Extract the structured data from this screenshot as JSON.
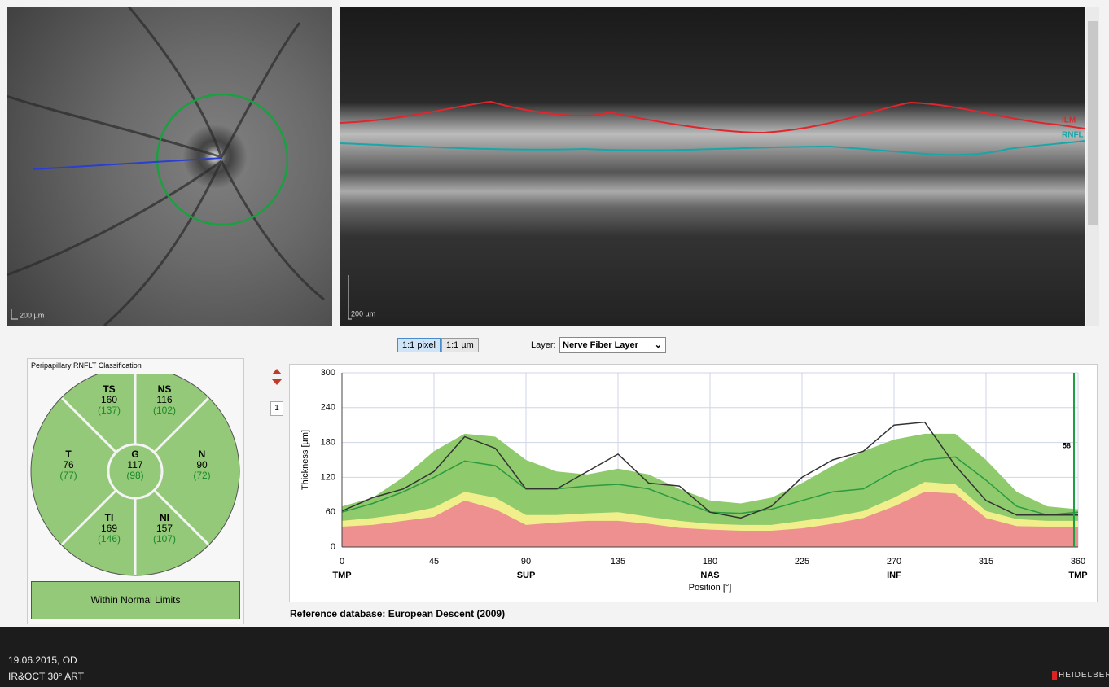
{
  "fundus": {
    "scale_label": "200 µm"
  },
  "oct": {
    "scale_label": "200 µm",
    "layer_top": "ILM",
    "layer_bottom": "RNFL"
  },
  "toolbar": {
    "pixel_button": "1:1 pixel",
    "micron_button": "1:1 µm",
    "layer_label": "Layer:",
    "layer_value": "Nerve Fiber Layer",
    "page_number": "1"
  },
  "classification": {
    "title": "Peripapillary RNFLT Classification",
    "sectors": [
      {
        "name": "TS",
        "value": "160",
        "reference": "(137)"
      },
      {
        "name": "NS",
        "value": "116",
        "reference": "(102)"
      },
      {
        "name": "T",
        "value": "76",
        "reference": "(77)"
      },
      {
        "name": "G",
        "value": "117",
        "reference": "(98)"
      },
      {
        "name": "N",
        "value": "90",
        "reference": "(72)"
      },
      {
        "name": "TI",
        "value": "169",
        "reference": "(146)"
      },
      {
        "name": "NI",
        "value": "157",
        "reference": "(107)"
      }
    ],
    "status": "Within Normal Limits"
  },
  "chart_data": {
    "type": "line",
    "y_label": "Thickness [µm]",
    "x_label": "Position [°]",
    "note": "Reference database: European Descent (2009)",
    "xlim": [
      0,
      360
    ],
    "ylim": [
      0,
      300
    ],
    "xticks": [
      0,
      45,
      90,
      135,
      180,
      225,
      270,
      315,
      360
    ],
    "yticks": [
      0,
      60,
      120,
      180,
      240,
      300
    ],
    "x_sectors": [
      {
        "value": 0,
        "label": "TMP"
      },
      {
        "value": 90,
        "label": "SUP"
      },
      {
        "value": 180,
        "label": "NAS"
      },
      {
        "value": 270,
        "label": "INF"
      },
      {
        "value": 360,
        "label": "TMP"
      }
    ],
    "grid": true,
    "x": [
      0,
      15,
      30,
      45,
      60,
      75,
      90,
      105,
      120,
      135,
      150,
      165,
      180,
      195,
      210,
      225,
      240,
      255,
      270,
      285,
      300,
      315,
      330,
      345,
      360
    ],
    "bands": [
      {
        "color": "#8fca6c",
        "values": [
          70,
          85,
          120,
          165,
          195,
          190,
          150,
          130,
          125,
          135,
          125,
          100,
          80,
          75,
          85,
          110,
          140,
          165,
          185,
          195,
          195,
          150,
          95,
          70,
          65
        ]
      },
      {
        "color": "#f1ef8c",
        "values": [
          45,
          50,
          57,
          68,
          95,
          85,
          55,
          55,
          58,
          60,
          52,
          45,
          40,
          38,
          38,
          45,
          52,
          62,
          85,
          112,
          108,
          62,
          48,
          45,
          45
        ]
      },
      {
        "color": "#ee8f90",
        "values": [
          35,
          38,
          45,
          52,
          80,
          65,
          38,
          42,
          45,
          45,
          40,
          33,
          30,
          28,
          28,
          32,
          40,
          50,
          70,
          95,
          92,
          50,
          36,
          35,
          35
        ]
      }
    ],
    "series": [
      {
        "color": "#2b9a40",
        "values": [
          60,
          75,
          95,
          120,
          148,
          140,
          100,
          100,
          105,
          108,
          100,
          80,
          60,
          58,
          65,
          80,
          95,
          100,
          130,
          150,
          155,
          115,
          70,
          55,
          60
        ]
      },
      {
        "color": "#333333",
        "values": [
          62,
          85,
          100,
          130,
          190,
          170,
          100,
          100,
          130,
          160,
          110,
          105,
          60,
          50,
          70,
          120,
          150,
          165,
          210,
          215,
          140,
          80,
          55,
          55,
          55
        ]
      }
    ],
    "marker": {
      "x": 358,
      "value": 58,
      "color": "#1aa040"
    }
  },
  "footer": {
    "date": "19.06.2015, OD",
    "mode": "IR&OCT 30° ART",
    "brand": "HEIDELBERG"
  }
}
